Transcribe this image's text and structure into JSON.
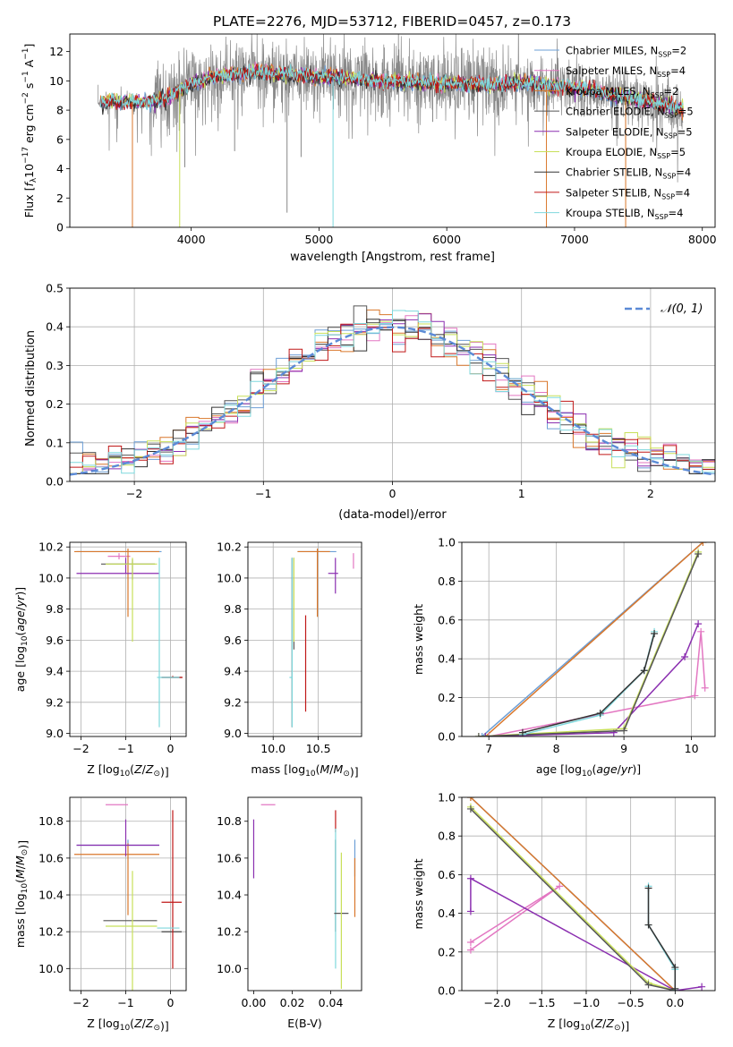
{
  "title": "PLATE=2276, MJD=53712, FIBERID=0457, z=0.173",
  "models": [
    {
      "name": "Chabrier MILES",
      "nssp": "2",
      "color": "#6d9fd6"
    },
    {
      "name": "Salpeter MILES",
      "nssp": "4",
      "color": "#e377c2"
    },
    {
      "name": "Kroupa MILES",
      "nssp": "2",
      "color": "#d9772b"
    },
    {
      "name": "Chabrier ELODIE",
      "nssp": "5",
      "color": "#555555"
    },
    {
      "name": "Salpeter ELODIE",
      "nssp": "5",
      "color": "#8b2fb0"
    },
    {
      "name": "Kroupa ELODIE",
      "nssp": "5",
      "color": "#c8e05a"
    },
    {
      "name": "Chabrier STELIB",
      "nssp": "4",
      "color": "#333333"
    },
    {
      "name": "Salpeter STELIB",
      "nssp": "4",
      "color": "#c01818"
    },
    {
      "name": "Kroupa STELIB",
      "nssp": "4",
      "color": "#7fd8dd"
    }
  ],
  "chart_data": [
    {
      "id": "spectrum",
      "type": "line",
      "xlabel": "wavelength [Angstrom, rest frame]",
      "ylabel": "Flux [f_λ10^-17 erg cm^-2 s^-1 A^-1]",
      "xlim": [
        3050,
        8100
      ],
      "ylim": [
        0,
        13.2
      ],
      "xticks": [
        4000,
        5000,
        6000,
        7000,
        8000
      ],
      "yticks": [
        0,
        2,
        4,
        6,
        8,
        10,
        12
      ],
      "grid": false,
      "legend": "top-right",
      "data_color": "#888888",
      "continuum": [
        [
          3270,
          8.5
        ],
        [
          3400,
          8.6
        ],
        [
          3600,
          8.5
        ],
        [
          3800,
          8.8
        ],
        [
          4000,
          9.8
        ],
        [
          4200,
          10.3
        ],
        [
          4500,
          10.6
        ],
        [
          4800,
          10.4
        ],
        [
          5000,
          10.3
        ],
        [
          5300,
          10.1
        ],
        [
          5600,
          9.9
        ],
        [
          6000,
          9.8
        ],
        [
          6300,
          9.7
        ],
        [
          6600,
          9.9
        ],
        [
          7000,
          9.5
        ],
        [
          7400,
          8.9
        ],
        [
          7800,
          8.2
        ],
        [
          7850,
          8.0
        ]
      ],
      "absorption_spikes": [
        [
          3540,
          0
        ],
        [
          3910,
          0
        ],
        [
          5110,
          0
        ],
        [
          6780,
          0
        ],
        [
          7400,
          0
        ],
        [
          3950,
          4.1
        ],
        [
          4340,
          5.2
        ],
        [
          4860,
          4.8
        ],
        [
          4750,
          1
        ],
        [
          5890,
          7.2
        ]
      ]
    },
    {
      "id": "residuals",
      "type": "step",
      "xlabel": "(data-model)/error",
      "ylabel": "Normed distribution",
      "xlim": [
        -2.5,
        2.5
      ],
      "ylim": [
        0,
        0.5
      ],
      "xticks": [
        -2,
        -1,
        0,
        1,
        2
      ],
      "yticks": [
        0.0,
        0.1,
        0.2,
        0.3,
        0.4,
        0.5
      ],
      "grid": true,
      "legend": "top-right",
      "gaussian_label": "𝒩(0, 1)",
      "gaussian_color": "#5b8ad6",
      "bin_width": 0.1
    },
    {
      "id": "age_vs_Z",
      "type": "errorbar",
      "xlabel": "Z [log10(Z/Z⊙)]",
      "ylabel": "age  [log10(age/yr)]",
      "xlim": [
        -2.25,
        0.35
      ],
      "ylim": [
        8.98,
        10.23
      ],
      "xticks": [
        -2,
        -1,
        0
      ],
      "yticks": [
        9.0,
        9.2,
        9.4,
        9.6,
        9.8,
        10.0,
        10.2
      ],
      "grid": true,
      "points": [
        {
          "m": 0,
          "x": -0.95,
          "y": 10.17,
          "xerr": [
            1.15,
            0.75
          ],
          "yerr": [
            0,
            0.0
          ]
        },
        {
          "m": 1,
          "x": -1.15,
          "y": 10.14,
          "xerr": [
            0.25,
            0.25
          ],
          "yerr": [
            0.02,
            0.02
          ]
        },
        {
          "m": 2,
          "x": -0.95,
          "y": 10.17,
          "xerr": [
            1.2,
            0.7
          ],
          "yerr": [
            0.42,
            0.02
          ]
        },
        {
          "m": 3,
          "x": -0.85,
          "y": 10.09,
          "xerr": [
            0.7,
            0.5
          ],
          "yerr": [
            0.1,
            0.03
          ]
        },
        {
          "m": 4,
          "x": -1.0,
          "y": 10.03,
          "xerr": [
            1.1,
            0.75
          ],
          "yerr": [
            0,
            0.1
          ]
        },
        {
          "m": 5,
          "x": -0.85,
          "y": 10.09,
          "xerr": [
            0.6,
            0.55
          ],
          "yerr": [
            0.5,
            0.04
          ]
        },
        {
          "m": 6,
          "x": 0.05,
          "y": 9.36,
          "xerr": [
            0.25,
            0.2
          ],
          "yerr": [
            0,
            0
          ]
        },
        {
          "m": 7,
          "x": 0.05,
          "y": 9.36,
          "xerr": [
            0.25,
            0.22
          ],
          "yerr": [
            0,
            0.01
          ]
        },
        {
          "m": 8,
          "x": -0.25,
          "y": 9.36,
          "xerr": [
            0.05,
            0.45
          ],
          "yerr": [
            0.32,
            0.77
          ]
        }
      ]
    },
    {
      "id": "age_vs_mass",
      "type": "errorbar",
      "xlabel": "mass [log10(M/M⊙)]",
      "ylabel": "",
      "xlim": [
        9.72,
        10.98
      ],
      "ylim": [
        8.98,
        10.23
      ],
      "xticks": [
        10.0,
        10.5
      ],
      "yticks": [
        9.0,
        9.2,
        9.4,
        9.6,
        9.8,
        10.0,
        10.2
      ],
      "grid": true,
      "points": [
        {
          "m": 0,
          "x": 10.49,
          "y": 10.17,
          "xerr": [
            0.22,
            0.21
          ],
          "yerr": [
            0,
            0
          ]
        },
        {
          "m": 1,
          "x": 10.89,
          "y": 10.14,
          "xerr": [
            0.0,
            0.0
          ],
          "yerr": [
            0.08,
            0.02
          ]
        },
        {
          "m": 2,
          "x": 10.49,
          "y": 10.17,
          "xerr": [
            0.22,
            0.14
          ],
          "yerr": [
            0.42,
            0.02
          ]
        },
        {
          "m": 3,
          "x": 10.23,
          "y": 10.09,
          "xerr": [
            0.0,
            0.0
          ],
          "yerr": [
            0.55,
            0.04
          ]
        },
        {
          "m": 4,
          "x": 10.69,
          "y": 10.03,
          "xerr": [
            0.08,
            0.03
          ],
          "yerr": [
            0.13,
            0.1
          ]
        },
        {
          "m": 5,
          "x": 10.23,
          "y": 10.09,
          "xerr": [
            0.0,
            0.0
          ],
          "yerr": [
            0.5,
            0.04
          ]
        },
        {
          "m": 6,
          "x": 10.21,
          "y": 9.36,
          "xerr": [
            0.0,
            0.0
          ],
          "yerr": [
            0.32,
            0.77
          ]
        },
        {
          "m": 7,
          "x": 10.36,
          "y": 9.36,
          "xerr": [
            0.0,
            0.0
          ],
          "yerr": [
            0.22,
            0.4
          ]
        },
        {
          "m": 8,
          "x": 10.21,
          "y": 9.36,
          "xerr": [
            0.03,
            0.0
          ],
          "yerr": [
            0.32,
            0.77
          ]
        }
      ]
    },
    {
      "id": "weight_vs_age",
      "type": "line",
      "xlabel": "age  [log10(age/yr)]",
      "ylabel": "mass weight",
      "xlim": [
        6.6,
        10.35
      ],
      "ylim": [
        0,
        1
      ],
      "xticks": [
        7,
        8,
        9,
        10
      ],
      "yticks": [
        0.0,
        0.2,
        0.4,
        0.6,
        0.8,
        1.0
      ],
      "grid": true,
      "series": [
        {
          "m": 0,
          "points": [
            [
              6.9,
              0.0
            ],
            [
              10.17,
              1.0
            ]
          ]
        },
        {
          "m": 2,
          "points": [
            [
              6.95,
              0.0
            ],
            [
              10.17,
              1.0
            ]
          ]
        },
        {
          "m": 1,
          "points": [
            [
              7.0,
              0.0
            ],
            [
              10.05,
              0.21
            ],
            [
              10.14,
              0.54
            ],
            [
              10.2,
              0.25
            ]
          ]
        },
        {
          "m": 4,
          "points": [
            [
              6.95,
              0.0
            ],
            [
              8.85,
              0.02
            ],
            [
              9.9,
              0.41
            ],
            [
              10.1,
              0.58
            ]
          ]
        },
        {
          "m": 5,
          "points": [
            [
              6.85,
              0.0
            ],
            [
              9.0,
              0.04
            ],
            [
              10.1,
              0.95
            ]
          ]
        },
        {
          "m": 3,
          "points": [
            [
              6.85,
              0.0
            ],
            [
              9.0,
              0.03
            ],
            [
              10.1,
              0.94
            ]
          ]
        },
        {
          "m": 8,
          "points": [
            [
              7.5,
              0.01
            ],
            [
              8.65,
              0.11
            ],
            [
              9.3,
              0.34
            ],
            [
              9.45,
              0.54
            ]
          ]
        },
        {
          "m": 6,
          "points": [
            [
              7.5,
              0.02
            ],
            [
              8.65,
              0.12
            ],
            [
              9.3,
              0.34
            ],
            [
              9.45,
              0.53
            ]
          ]
        }
      ]
    },
    {
      "id": "mass_vs_Z",
      "type": "errorbar",
      "xlabel": "Z [log10(Z/Z⊙)]",
      "ylabel": "mass [log10(M/M⊙)]",
      "xlim": [
        -2.25,
        0.35
      ],
      "ylim": [
        9.88,
        10.93
      ],
      "xticks": [
        -2,
        -1,
        0
      ],
      "yticks": [
        10.0,
        10.2,
        10.4,
        10.6,
        10.8
      ],
      "grid": true,
      "points": [
        {
          "m": 0,
          "x": -0.95,
          "y": 10.67,
          "xerr": [
            1.15,
            0.7
          ],
          "yerr": [
            0.0,
            0.03
          ]
        },
        {
          "m": 1,
          "x": -1.2,
          "y": 10.89,
          "xerr": [
            0.25,
            0.25
          ],
          "yerr": [
            0.0,
            0.0
          ]
        },
        {
          "m": 2,
          "x": -0.95,
          "y": 10.62,
          "xerr": [
            1.2,
            0.7
          ],
          "yerr": [
            0.33,
            0.06
          ]
        },
        {
          "m": 3,
          "x": -0.85,
          "y": 10.26,
          "xerr": [
            0.65,
            0.55
          ],
          "yerr": [
            0.0,
            0.0
          ]
        },
        {
          "m": 4,
          "x": -1.0,
          "y": 10.67,
          "xerr": [
            1.1,
            0.75
          ],
          "yerr": [
            0.06,
            0.14
          ]
        },
        {
          "m": 5,
          "x": -0.85,
          "y": 10.23,
          "xerr": [
            0.6,
            0.55
          ],
          "yerr": [
            0.35,
            0.3
          ]
        },
        {
          "m": 6,
          "x": 0.05,
          "y": 10.2,
          "xerr": [
            0.25,
            0.2
          ],
          "yerr": [
            0.0,
            0.0
          ]
        },
        {
          "m": 7,
          "x": 0.05,
          "y": 10.36,
          "xerr": [
            0.25,
            0.2
          ],
          "yerr": [
            0.36,
            0.5
          ]
        },
        {
          "m": 8,
          "x": -0.25,
          "y": 10.22,
          "xerr": [
            0.05,
            0.45
          ],
          "yerr": [
            0.0,
            0.0
          ]
        }
      ]
    },
    {
      "id": "mass_vs_ebv",
      "type": "errorbar",
      "xlabel": "E(B-V)",
      "ylabel": "",
      "xlim": [
        -0.003,
        0.056
      ],
      "ylim": [
        9.88,
        10.93
      ],
      "xticks": [
        0.0,
        0.02,
        0.04
      ],
      "yticks": [
        10.0,
        10.2,
        10.4,
        10.6,
        10.8
      ],
      "grid": false,
      "points": [
        {
          "m": 1,
          "x": 0.0075,
          "y": 10.89,
          "xerr": [
            0,
            0
          ],
          "yerr": [
            0.0,
            0.0
          ]
        },
        {
          "m": 4,
          "x": 0.0,
          "y": 10.67,
          "xerr": [
            0,
            0
          ],
          "yerr": [
            0.18,
            0.14
          ]
        },
        {
          "m": 7,
          "x": 0.0425,
          "y": 10.75,
          "xerr": [
            0,
            0
          ],
          "yerr": [
            0.01,
            0.11
          ]
        },
        {
          "m": 6,
          "x": 0.0425,
          "y": 10.5,
          "xerr": [
            0,
            0
          ],
          "yerr": [
            0.3,
            0.2
          ]
        },
        {
          "m": 8,
          "x": 0.0425,
          "y": 10.3,
          "xerr": [
            0,
            0
          ],
          "yerr": [
            0.3,
            0.46
          ]
        },
        {
          "m": 3,
          "x": 0.0455,
          "y": 10.3,
          "xerr": [
            0,
            0
          ],
          "yerr": [
            0.0,
            0.0
          ]
        },
        {
          "m": 5,
          "x": 0.0455,
          "y": 10.2,
          "xerr": [
            0,
            0
          ],
          "yerr": [
            0.31,
            0.43
          ]
        },
        {
          "m": 0,
          "x": 0.0525,
          "y": 10.5,
          "xerr": [
            0,
            0
          ],
          "yerr": [
            0.0,
            0.2
          ]
        },
        {
          "m": 2,
          "x": 0.0525,
          "y": 10.5,
          "xerr": [
            0,
            0
          ],
          "yerr": [
            0.22,
            0.1
          ]
        }
      ]
    },
    {
      "id": "weight_vs_Z",
      "type": "line",
      "xlabel": "Z [log10(Z/Z⊙)]",
      "ylabel": "mass weight",
      "xlim": [
        -2.4,
        0.45
      ],
      "ylim": [
        0,
        1
      ],
      "xticks": [
        -2.0,
        -1.5,
        -1.0,
        -0.5,
        0.0
      ],
      "yticks": [
        0.0,
        0.2,
        0.4,
        0.6,
        0.8,
        1.0
      ],
      "grid": true,
      "series": [
        {
          "m": 0,
          "points": [
            [
              -2.3,
              1.0
            ],
            [
              0.0,
              0.0
            ]
          ]
        },
        {
          "m": 2,
          "points": [
            [
              -2.3,
              1.0
            ],
            [
              0.0,
              0.0
            ]
          ]
        },
        {
          "m": 1,
          "points": [
            [
              -2.3,
              0.21
            ],
            [
              -1.3,
              0.54
            ],
            [
              -2.3,
              0.25
            ]
          ]
        },
        {
          "m": 4,
          "points": [
            [
              -2.3,
              0.41
            ],
            [
              -2.3,
              0.58
            ],
            [
              0.0,
              0.0
            ],
            [
              0.3,
              0.02
            ]
          ]
        },
        {
          "m": 5,
          "points": [
            [
              -2.3,
              0.95
            ],
            [
              -0.3,
              0.04
            ],
            [
              0.0,
              0.0
            ]
          ]
        },
        {
          "m": 3,
          "points": [
            [
              -2.3,
              0.94
            ],
            [
              -0.3,
              0.03
            ],
            [
              0.0,
              0.0
            ]
          ]
        },
        {
          "m": 8,
          "points": [
            [
              -0.3,
              0.54
            ],
            [
              -0.3,
              0.34
            ],
            [
              0.0,
              0.11
            ],
            [
              0.0,
              0.0
            ]
          ]
        },
        {
          "m": 6,
          "points": [
            [
              -0.3,
              0.53
            ],
            [
              -0.3,
              0.34
            ],
            [
              0.0,
              0.12
            ],
            [
              0.0,
              0.01
            ]
          ]
        }
      ]
    }
  ]
}
